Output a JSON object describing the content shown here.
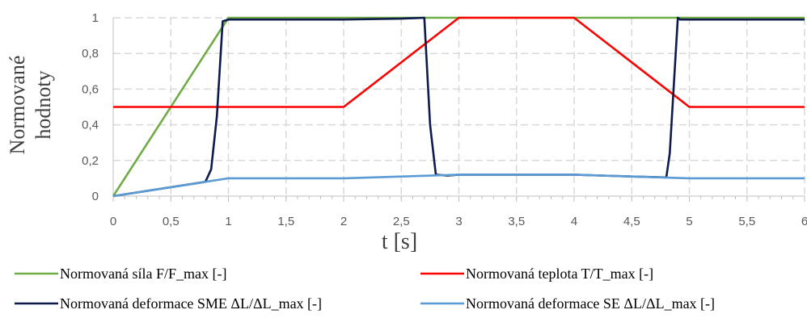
{
  "chart_data": {
    "type": "line",
    "title": "",
    "xlabel": "t [s]",
    "ylabel_line1": "Normované",
    "ylabel_line2": "hodnoty",
    "xlim": [
      0,
      6
    ],
    "ylim": [
      0,
      1
    ],
    "x_ticks": [
      "0",
      "0,5",
      "1",
      "1,5",
      "2",
      "2,5",
      "3",
      "3,5",
      "4",
      "4,5",
      "5",
      "5,5",
      "6"
    ],
    "y_ticks": [
      "0",
      "0,2",
      "0,4",
      "0,6",
      "0,8",
      "1"
    ],
    "grid": true,
    "legend_position": "bottom",
    "series": [
      {
        "name": "Normovaná síla F/F_max [-]",
        "color": "#70AD47",
        "points": [
          [
            0,
            0
          ],
          [
            1,
            1
          ],
          [
            6,
            1
          ]
        ]
      },
      {
        "name": "Normovaná teplota T/T_max [-]",
        "color": "#FF0000",
        "points": [
          [
            0,
            0.5
          ],
          [
            2,
            0.5
          ],
          [
            3,
            1
          ],
          [
            4,
            1
          ],
          [
            5,
            0.5
          ],
          [
            6,
            0.5
          ]
        ]
      },
      {
        "name": "Normovaná deformace SME ΔL/ΔL_max [-]",
        "color": "#0D1B4C",
        "points": [
          [
            0,
            0
          ],
          [
            0.5,
            0.05
          ],
          [
            0.8,
            0.08
          ],
          [
            0.85,
            0.15
          ],
          [
            0.9,
            0.45
          ],
          [
            0.95,
            0.98
          ],
          [
            1,
            0.99
          ],
          [
            2,
            0.99
          ],
          [
            2.5,
            0.995
          ],
          [
            2.7,
            1.0
          ],
          [
            2.75,
            0.4
          ],
          [
            2.8,
            0.12
          ],
          [
            2.9,
            0.115
          ],
          [
            3,
            0.12
          ],
          [
            4,
            0.12
          ],
          [
            4.5,
            0.11
          ],
          [
            4.8,
            0.105
          ],
          [
            4.83,
            0.24
          ],
          [
            4.9,
            1.0
          ],
          [
            4.92,
            0.99
          ],
          [
            6,
            0.99
          ]
        ]
      },
      {
        "name": "Normovaná deformace SE ΔL/ΔL_max [-]",
        "color": "#5B9BD5",
        "points": [
          [
            0,
            0
          ],
          [
            0.5,
            0.05
          ],
          [
            1,
            0.1
          ],
          [
            2,
            0.1
          ],
          [
            3,
            0.12
          ],
          [
            4,
            0.12
          ],
          [
            4.5,
            0.11
          ],
          [
            5,
            0.1
          ],
          [
            6,
            0.1
          ]
        ]
      }
    ]
  }
}
